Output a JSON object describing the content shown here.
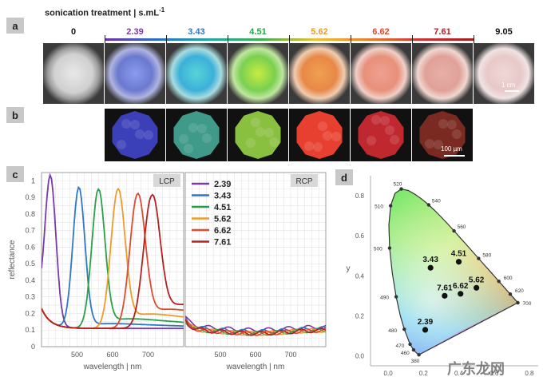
{
  "panels": {
    "a": "a",
    "b": "b",
    "c": "c",
    "d": "d"
  },
  "header": {
    "title": "sonication treatment | s.mL",
    "sup": "-1"
  },
  "concentrations": [
    {
      "label": "0",
      "color": "#111111"
    },
    {
      "label": "2.39",
      "color": "#7b3aa6"
    },
    {
      "label": "3.43",
      "color": "#2f77c8"
    },
    {
      "label": "4.51",
      "color": "#2aa048"
    },
    {
      "label": "5.62",
      "color": "#ef9a2a"
    },
    {
      "label": "6.62",
      "color": "#e04a30"
    },
    {
      "label": "7.61",
      "color": "#b32121"
    },
    {
      "label": "9.05",
      "color": "#111111"
    }
  ],
  "scalebars": {
    "dish": "1 cm",
    "micro": "100 µm"
  },
  "spectra": {
    "panel_labels": {
      "left": "LCP",
      "right": "RCP"
    },
    "xlabel": "wavelength | nm",
    "ylabel": "reflectance",
    "yticks": [
      "0",
      "0.1",
      "0.2",
      "0.3",
      "0.4",
      "0.5",
      "0.6",
      "0.7",
      "0.8",
      "0.9",
      "1"
    ],
    "xticks": [
      "500",
      "600",
      "700"
    ],
    "legend": [
      "2.39",
      "3.43",
      "4.51",
      "5.62",
      "6.62",
      "7.61"
    ]
  },
  "chart_data": [
    {
      "type": "line",
      "title": "LCP",
      "xlabel": "wavelength | nm",
      "ylabel": "reflectance",
      "xlim": [
        400,
        800
      ],
      "ylim": [
        0,
        1.05
      ],
      "series": [
        {
          "name": "2.39",
          "peak_x": 425,
          "peak_y": 1.0,
          "color": "#7b3aa6"
        },
        {
          "name": "3.43",
          "peak_x": 505,
          "peak_y": 0.97,
          "color": "#2f77c8"
        },
        {
          "name": "4.51",
          "peak_x": 560,
          "peak_y": 0.96,
          "color": "#2aa048"
        },
        {
          "name": "5.62",
          "peak_x": 615,
          "peak_y": 0.96,
          "color": "#ef9a2a"
        },
        {
          "name": "6.62",
          "peak_x": 670,
          "peak_y": 0.93,
          "color": "#e04a30"
        },
        {
          "name": "7.61",
          "peak_x": 710,
          "peak_y": 0.92,
          "color": "#b32121"
        }
      ]
    },
    {
      "type": "line",
      "title": "RCP",
      "xlabel": "wavelength | nm",
      "xlim": [
        400,
        800
      ],
      "ylim": [
        0,
        1.05
      ],
      "series": [
        {
          "name": "2.39",
          "level": 0.12,
          "color": "#7b3aa6"
        },
        {
          "name": "3.43",
          "level": 0.11,
          "color": "#2f77c8"
        },
        {
          "name": "4.51",
          "level": 0.1,
          "color": "#2aa048"
        },
        {
          "name": "5.62",
          "level": 0.1,
          "color": "#ef9a2a"
        },
        {
          "name": "6.62",
          "level": 0.1,
          "color": "#e04a30"
        },
        {
          "name": "7.61",
          "level": 0.1,
          "color": "#b32121"
        }
      ]
    },
    {
      "type": "scatter",
      "title": "",
      "xlabel": "x",
      "ylabel": "y",
      "xlim": [
        -0.1,
        0.85
      ],
      "ylim": [
        -0.05,
        0.9
      ],
      "xticks": [
        "0.0",
        "0.2",
        "0.4",
        "0.6",
        "0.8"
      ],
      "yticks": [
        "0.0",
        "0.2",
        "0.4",
        "0.6",
        "0.8"
      ],
      "locus_labels": [
        "380",
        "460",
        "470",
        "480",
        "490",
        "500",
        "510",
        "520",
        "540",
        "560",
        "580",
        "600",
        "620",
        "700"
      ],
      "points": [
        {
          "label": "2.39",
          "x": 0.21,
          "y": 0.13
        },
        {
          "label": "3.43",
          "x": 0.24,
          "y": 0.44
        },
        {
          "label": "4.51",
          "x": 0.4,
          "y": 0.47
        },
        {
          "label": "5.62",
          "x": 0.5,
          "y": 0.34
        },
        {
          "label": "6.62",
          "x": 0.41,
          "y": 0.31
        },
        {
          "label": "7.61",
          "x": 0.32,
          "y": 0.3
        }
      ]
    }
  ],
  "watermark": "广东龙网"
}
